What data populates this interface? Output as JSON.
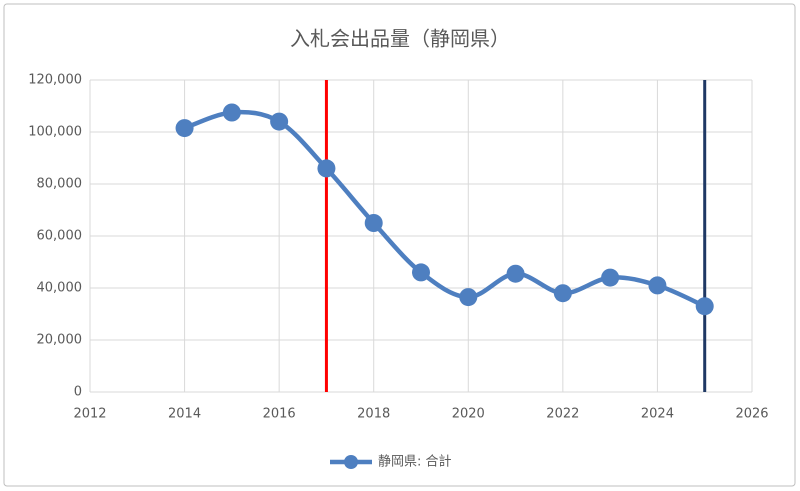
{
  "chart_data": {
    "type": "line",
    "title": "入札会出品量（静岡県）",
    "x": [
      2014,
      2015,
      2016,
      2017,
      2018,
      2019,
      2020,
      2021,
      2022,
      2023,
      2024,
      2025
    ],
    "series": [
      {
        "name": "静岡県: 合計",
        "color": "#4e7fc0",
        "values": [
          101500,
          107500,
          104000,
          86000,
          65000,
          46000,
          36500,
          45500,
          38000,
          44000,
          41000,
          33000
        ]
      }
    ],
    "xlim": [
      2012,
      2026
    ],
    "xticks": [
      2012,
      2014,
      2016,
      2018,
      2020,
      2022,
      2024,
      2026
    ],
    "ylim": [
      0,
      120000
    ],
    "yticks": [
      0,
      {
        "value": 20000,
        "label": "20,000"
      },
      {
        "value": 40000,
        "label": "40,000"
      },
      {
        "value": 60000,
        "label": "60,000"
      },
      {
        "value": 80000,
        "label": "80,000"
      },
      {
        "value": 100000,
        "label": "100,000"
      },
      {
        "value": 120000,
        "label": "120,000"
      }
    ],
    "grid": true,
    "smooth": true,
    "legend": "bottom",
    "vlines": [
      {
        "x": 2017,
        "color": "#ff0000"
      },
      {
        "x": 2025,
        "color": "#1f3864"
      }
    ]
  }
}
